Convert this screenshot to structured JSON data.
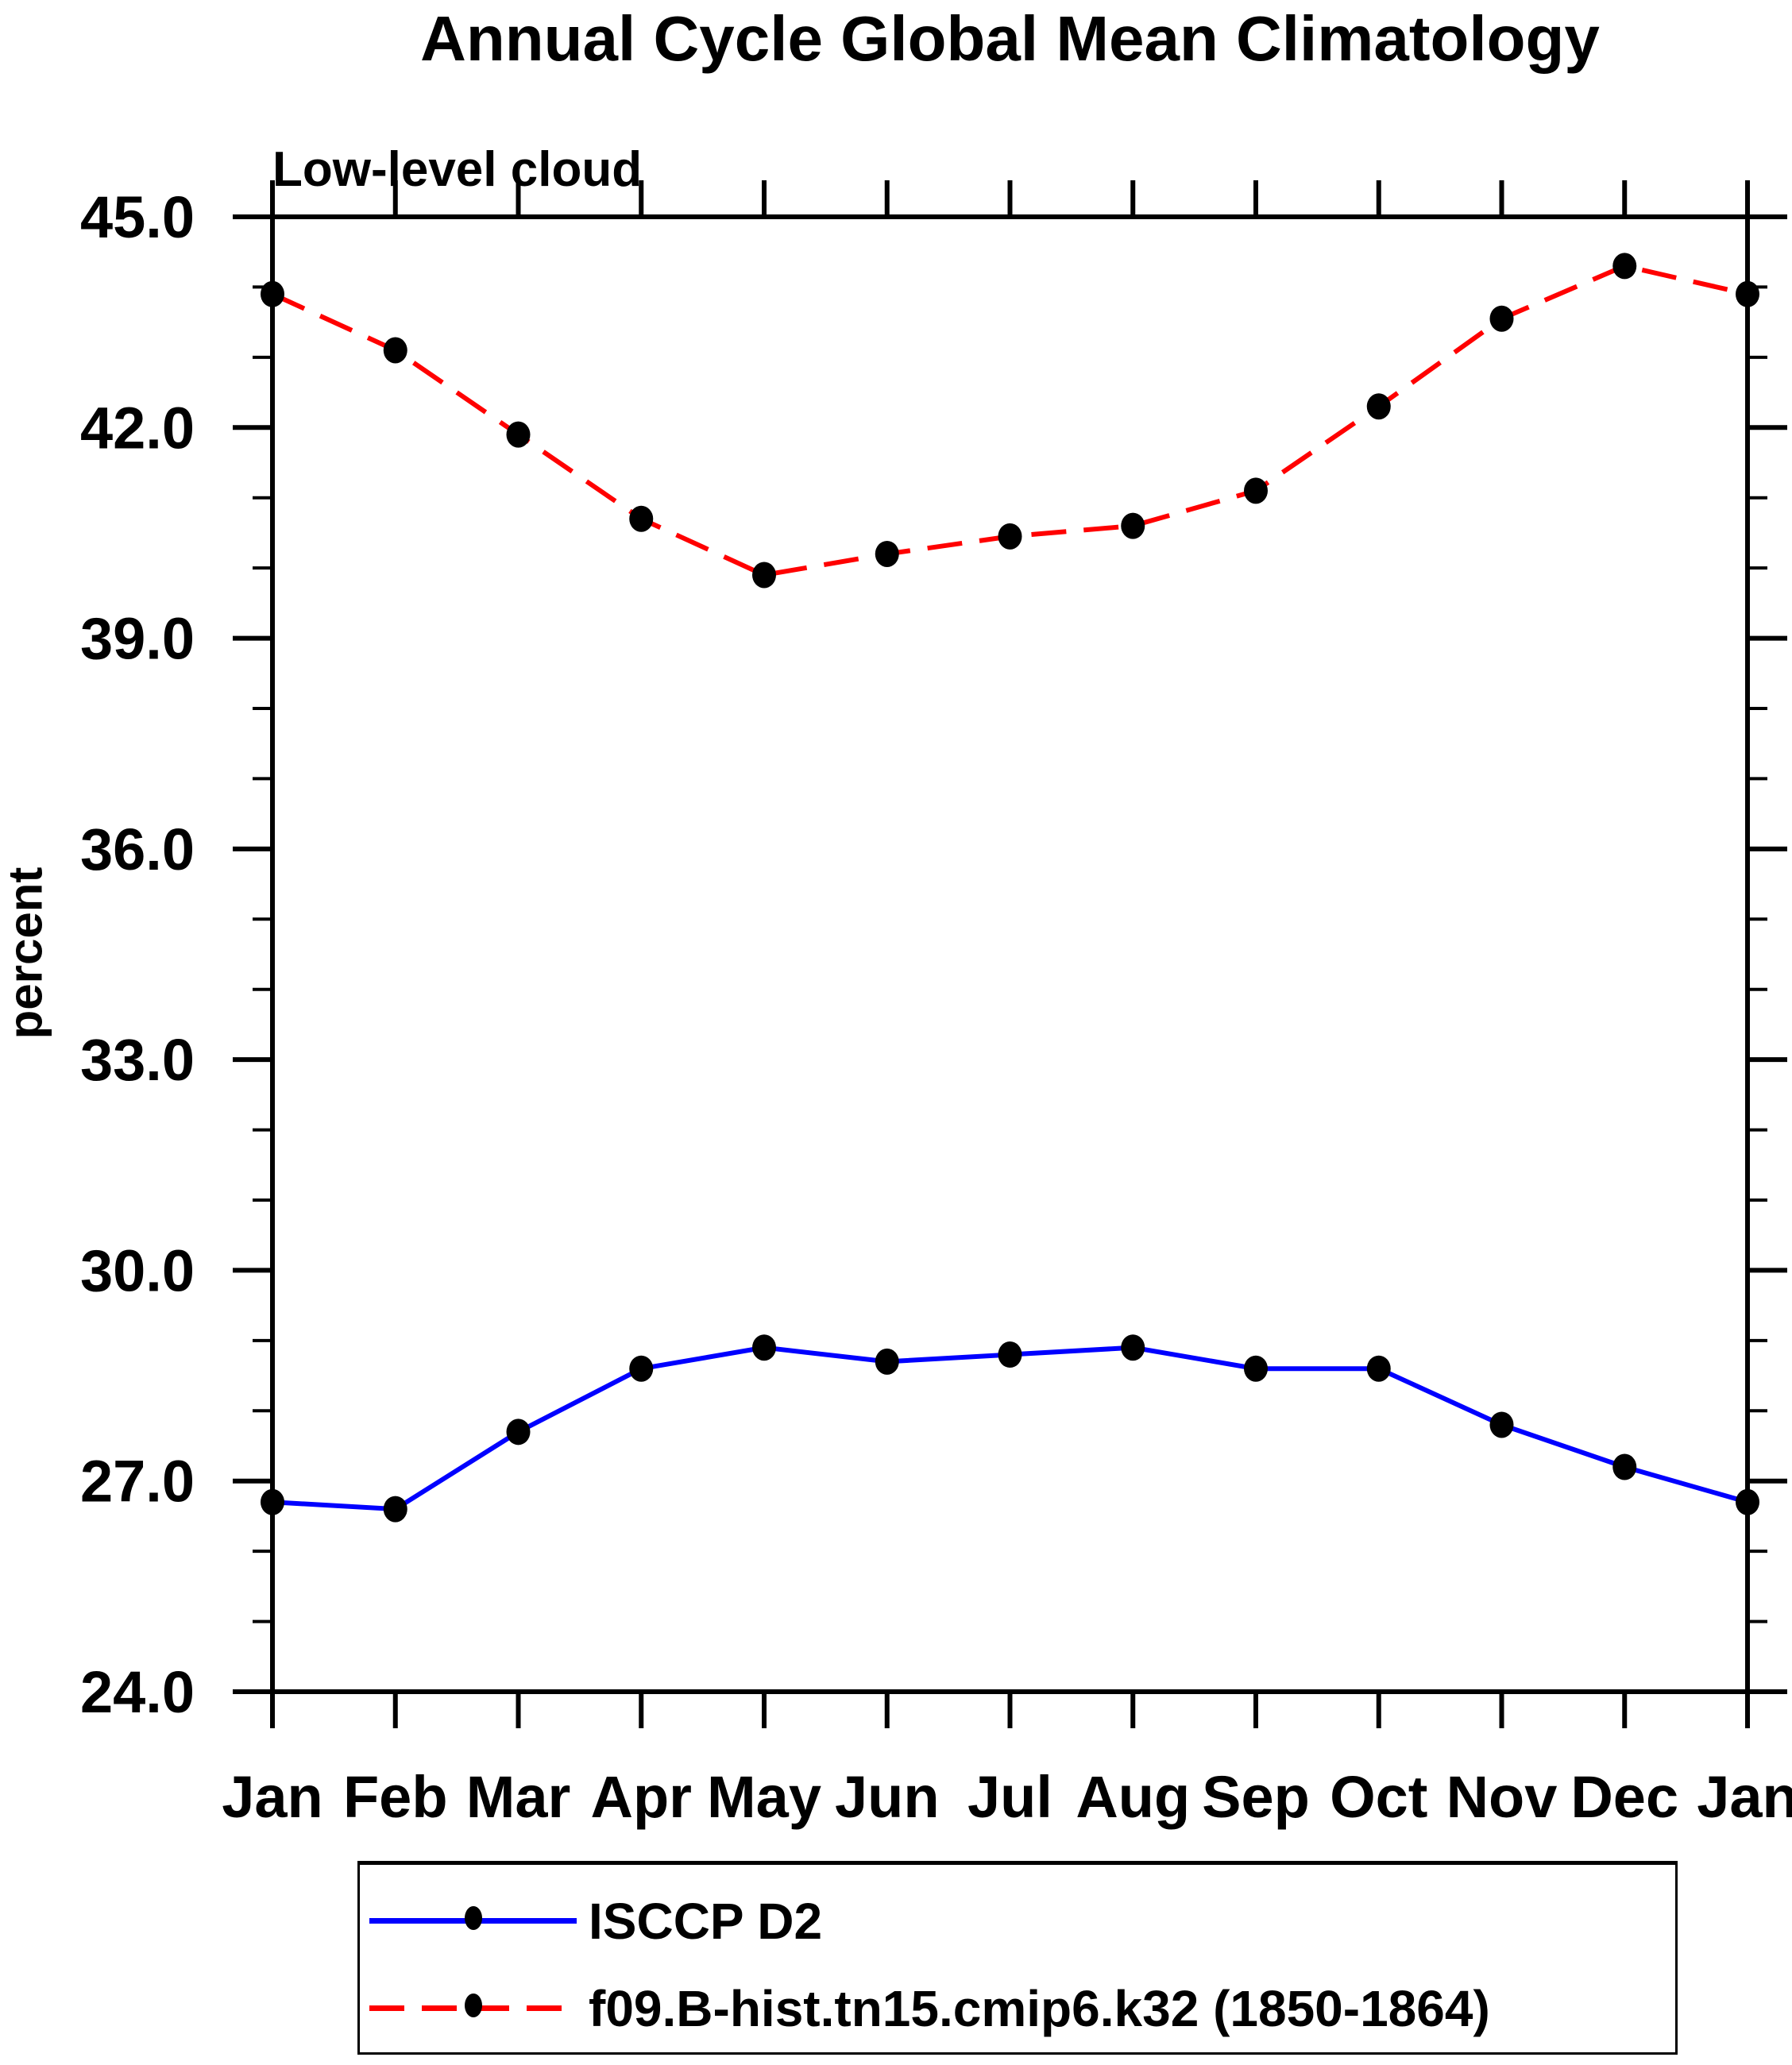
{
  "title": "Annual Cycle Global Mean Climatology",
  "subtitle": "Low-level cloud",
  "ylabel": "percent",
  "axis_color": "#000000",
  "chart_data": {
    "type": "line",
    "categories": [
      "Jan",
      "Feb",
      "Mar",
      "Apr",
      "May",
      "Jun",
      "Jul",
      "Aug",
      "Sep",
      "Oct",
      "Nov",
      "Dec",
      "Jan"
    ],
    "series": [
      {
        "name": "ISCCP D2",
        "line_color": "#0000ff",
        "line_style": "solid",
        "marker": "filled-ellipse",
        "marker_color": "#000000",
        "values": [
          26.7,
          26.6,
          27.7,
          28.6,
          28.9,
          28.7,
          28.8,
          28.9,
          28.6,
          28.6,
          27.8,
          27.2,
          26.7
        ]
      },
      {
        "name": "f09.B-hist.tn15.cmip6.k32 (1850-1864)",
        "line_color": "#ff0000",
        "line_style": "dashed",
        "marker": "filled-ellipse",
        "marker_color": "#000000",
        "values": [
          43.9,
          43.1,
          41.9,
          40.7,
          39.9,
          40.2,
          40.45,
          40.6,
          41.1,
          42.3,
          43.55,
          44.3,
          43.9
        ]
      }
    ],
    "xlabel": "",
    "ylabel": "percent",
    "ylim": [
      24.0,
      45.0
    ],
    "ytick_labels": [
      "24.0",
      "27.0",
      "30.0",
      "33.0",
      "36.0",
      "39.0",
      "42.0",
      "45.0"
    ],
    "ytick_major_interval": 3.0,
    "ytick_minor_interval": 1.0,
    "grid": false,
    "legend_position": "bottom"
  }
}
